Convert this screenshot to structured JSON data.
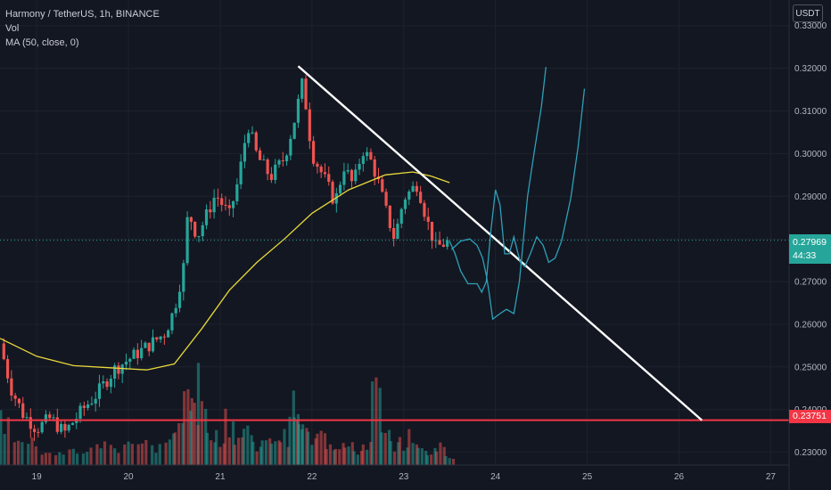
{
  "legend": {
    "symbol": "Harmony / TetherUS, 1h, BINANCE",
    "vol": "Vol",
    "ma": "MA (50, close, 0)"
  },
  "currency": "USDT",
  "last_price_tag": "0.27969",
  "countdown": "44:33",
  "support_tag": "0.23751",
  "colors": {
    "background": "#131722",
    "up": "#26a69a",
    "down": "#ef5350",
    "ma": "#e8d93a",
    "projection": "#2ea0b8",
    "trendline": "#ffffff",
    "support": "#f23645"
  },
  "chart_data": {
    "type": "candlestick",
    "interval": "1h",
    "y_axis_ticks": [
      "0.23000",
      "0.24000",
      "0.25000",
      "0.26000",
      "0.27000",
      "0.28000",
      "0.29000",
      "0.30000",
      "0.31000",
      "0.32000",
      "0.33000"
    ],
    "x_axis_ticks": [
      "19",
      "20",
      "21",
      "22",
      "23",
      "24",
      "25",
      "26",
      "27"
    ],
    "ylim": [
      0.227,
      0.336
    ],
    "xlim": [
      18.6,
      27.2
    ],
    "grid": true,
    "last_price": 0.27969,
    "support_level": 0.23751,
    "anchors": [
      [
        18.6,
        0.2555
      ],
      [
        18.72,
        0.245
      ],
      [
        18.85,
        0.239
      ],
      [
        19.0,
        0.2355
      ],
      [
        19.15,
        0.238
      ],
      [
        19.3,
        0.2345
      ],
      [
        19.5,
        0.24
      ],
      [
        19.65,
        0.2435
      ],
      [
        19.85,
        0.2495
      ],
      [
        20.05,
        0.2525
      ],
      [
        20.25,
        0.2555
      ],
      [
        20.4,
        0.258
      ],
      [
        20.5,
        0.2635
      ],
      [
        20.6,
        0.2735
      ],
      [
        20.65,
        0.2865
      ],
      [
        20.75,
        0.2805
      ],
      [
        20.85,
        0.2855
      ],
      [
        20.95,
        0.2905
      ],
      [
        21.1,
        0.2855
      ],
      [
        21.2,
        0.294
      ],
      [
        21.3,
        0.307
      ],
      [
        21.4,
        0.2995
      ],
      [
        21.55,
        0.2945
      ],
      [
        21.7,
        0.299
      ],
      [
        21.8,
        0.307
      ],
      [
        21.9,
        0.317
      ],
      [
        22.0,
        0.3
      ],
      [
        22.15,
        0.2935
      ],
      [
        22.25,
        0.2885
      ],
      [
        22.35,
        0.297
      ],
      [
        22.45,
        0.2925
      ],
      [
        22.55,
        0.301
      ],
      [
        22.65,
        0.298
      ],
      [
        22.72,
        0.2935
      ],
      [
        22.82,
        0.2855
      ],
      [
        22.9,
        0.28
      ],
      [
        23.0,
        0.2895
      ],
      [
        23.15,
        0.293
      ],
      [
        23.25,
        0.2845
      ],
      [
        23.35,
        0.278
      ],
      [
        23.5,
        0.2795
      ]
    ],
    "moving_average": {
      "name": "MA (50, close, 0)",
      "x": [
        18.6,
        19.0,
        19.4,
        19.8,
        20.2,
        20.5,
        20.8,
        21.1,
        21.4,
        21.7,
        22.0,
        22.4,
        22.8,
        23.1,
        23.3,
        23.5
      ],
      "y": [
        0.2567,
        0.2525,
        0.2503,
        0.2498,
        0.2493,
        0.2507,
        0.259,
        0.268,
        0.2745,
        0.28,
        0.286,
        0.2915,
        0.295,
        0.2957,
        0.2947,
        0.2932
      ]
    },
    "volume": {
      "name": "Vol",
      "x": [
        18.65,
        18.8,
        18.95,
        19.1,
        19.25,
        19.4,
        19.55,
        19.7,
        19.85,
        20.0,
        20.15,
        20.3,
        20.45,
        20.55,
        20.65,
        20.72,
        20.8,
        20.9,
        21.0,
        21.1,
        21.2,
        21.3,
        21.4,
        21.5,
        21.6,
        21.7,
        21.8,
        21.85,
        21.9,
        22.0,
        22.1,
        22.2,
        22.3,
        22.4,
        22.5,
        22.6,
        22.7,
        22.8,
        22.9,
        23.0,
        23.1,
        23.2,
        23.3,
        23.4,
        23.5
      ],
      "v": [
        6,
        4,
        3,
        2,
        1.5,
        2,
        2,
        3,
        2.5,
        3.5,
        3,
        2.5,
        4,
        5,
        10,
        11,
        7,
        5,
        4,
        6,
        4,
        5,
        3,
        3,
        4,
        4,
        8,
        6,
        5,
        4,
        6,
        3,
        3,
        2.5,
        2,
        3,
        10,
        4,
        3,
        3,
        4,
        2,
        2,
        3,
        1
      ]
    },
    "trendline": {
      "from": [
        21.85,
        0.3205
      ],
      "to": [
        26.25,
        0.2375
      ]
    },
    "projections": [
      {
        "x": [
          23.52,
          23.62,
          23.72,
          23.8,
          23.86,
          23.9,
          23.93,
          23.97,
          24.05,
          24.12,
          24.2,
          24.26,
          24.3,
          24.35,
          24.42,
          24.5,
          24.55
        ],
        "y": [
          0.2775,
          0.2795,
          0.28,
          0.2785,
          0.2755,
          0.2715,
          0.2675,
          0.2612,
          0.2625,
          0.2635,
          0.2625,
          0.27,
          0.279,
          0.29,
          0.3,
          0.311,
          0.3203
        ]
      },
      {
        "x": [
          23.5,
          23.56,
          23.62,
          23.7,
          23.8,
          23.85,
          23.9,
          23.95,
          24.0,
          24.05,
          24.1,
          24.15,
          24.2,
          24.27,
          24.32,
          24.38,
          24.45,
          24.52,
          24.58,
          24.65,
          24.72,
          24.82,
          24.9,
          24.97
        ],
        "y": [
          0.2795,
          0.2765,
          0.2725,
          0.2695,
          0.2695,
          0.2675,
          0.27,
          0.282,
          0.2915,
          0.288,
          0.2765,
          0.2765,
          0.2805,
          0.2745,
          0.2735,
          0.2765,
          0.2805,
          0.2785,
          0.2745,
          0.2755,
          0.2795,
          0.2895,
          0.3015,
          0.3152
        ]
      }
    ]
  }
}
